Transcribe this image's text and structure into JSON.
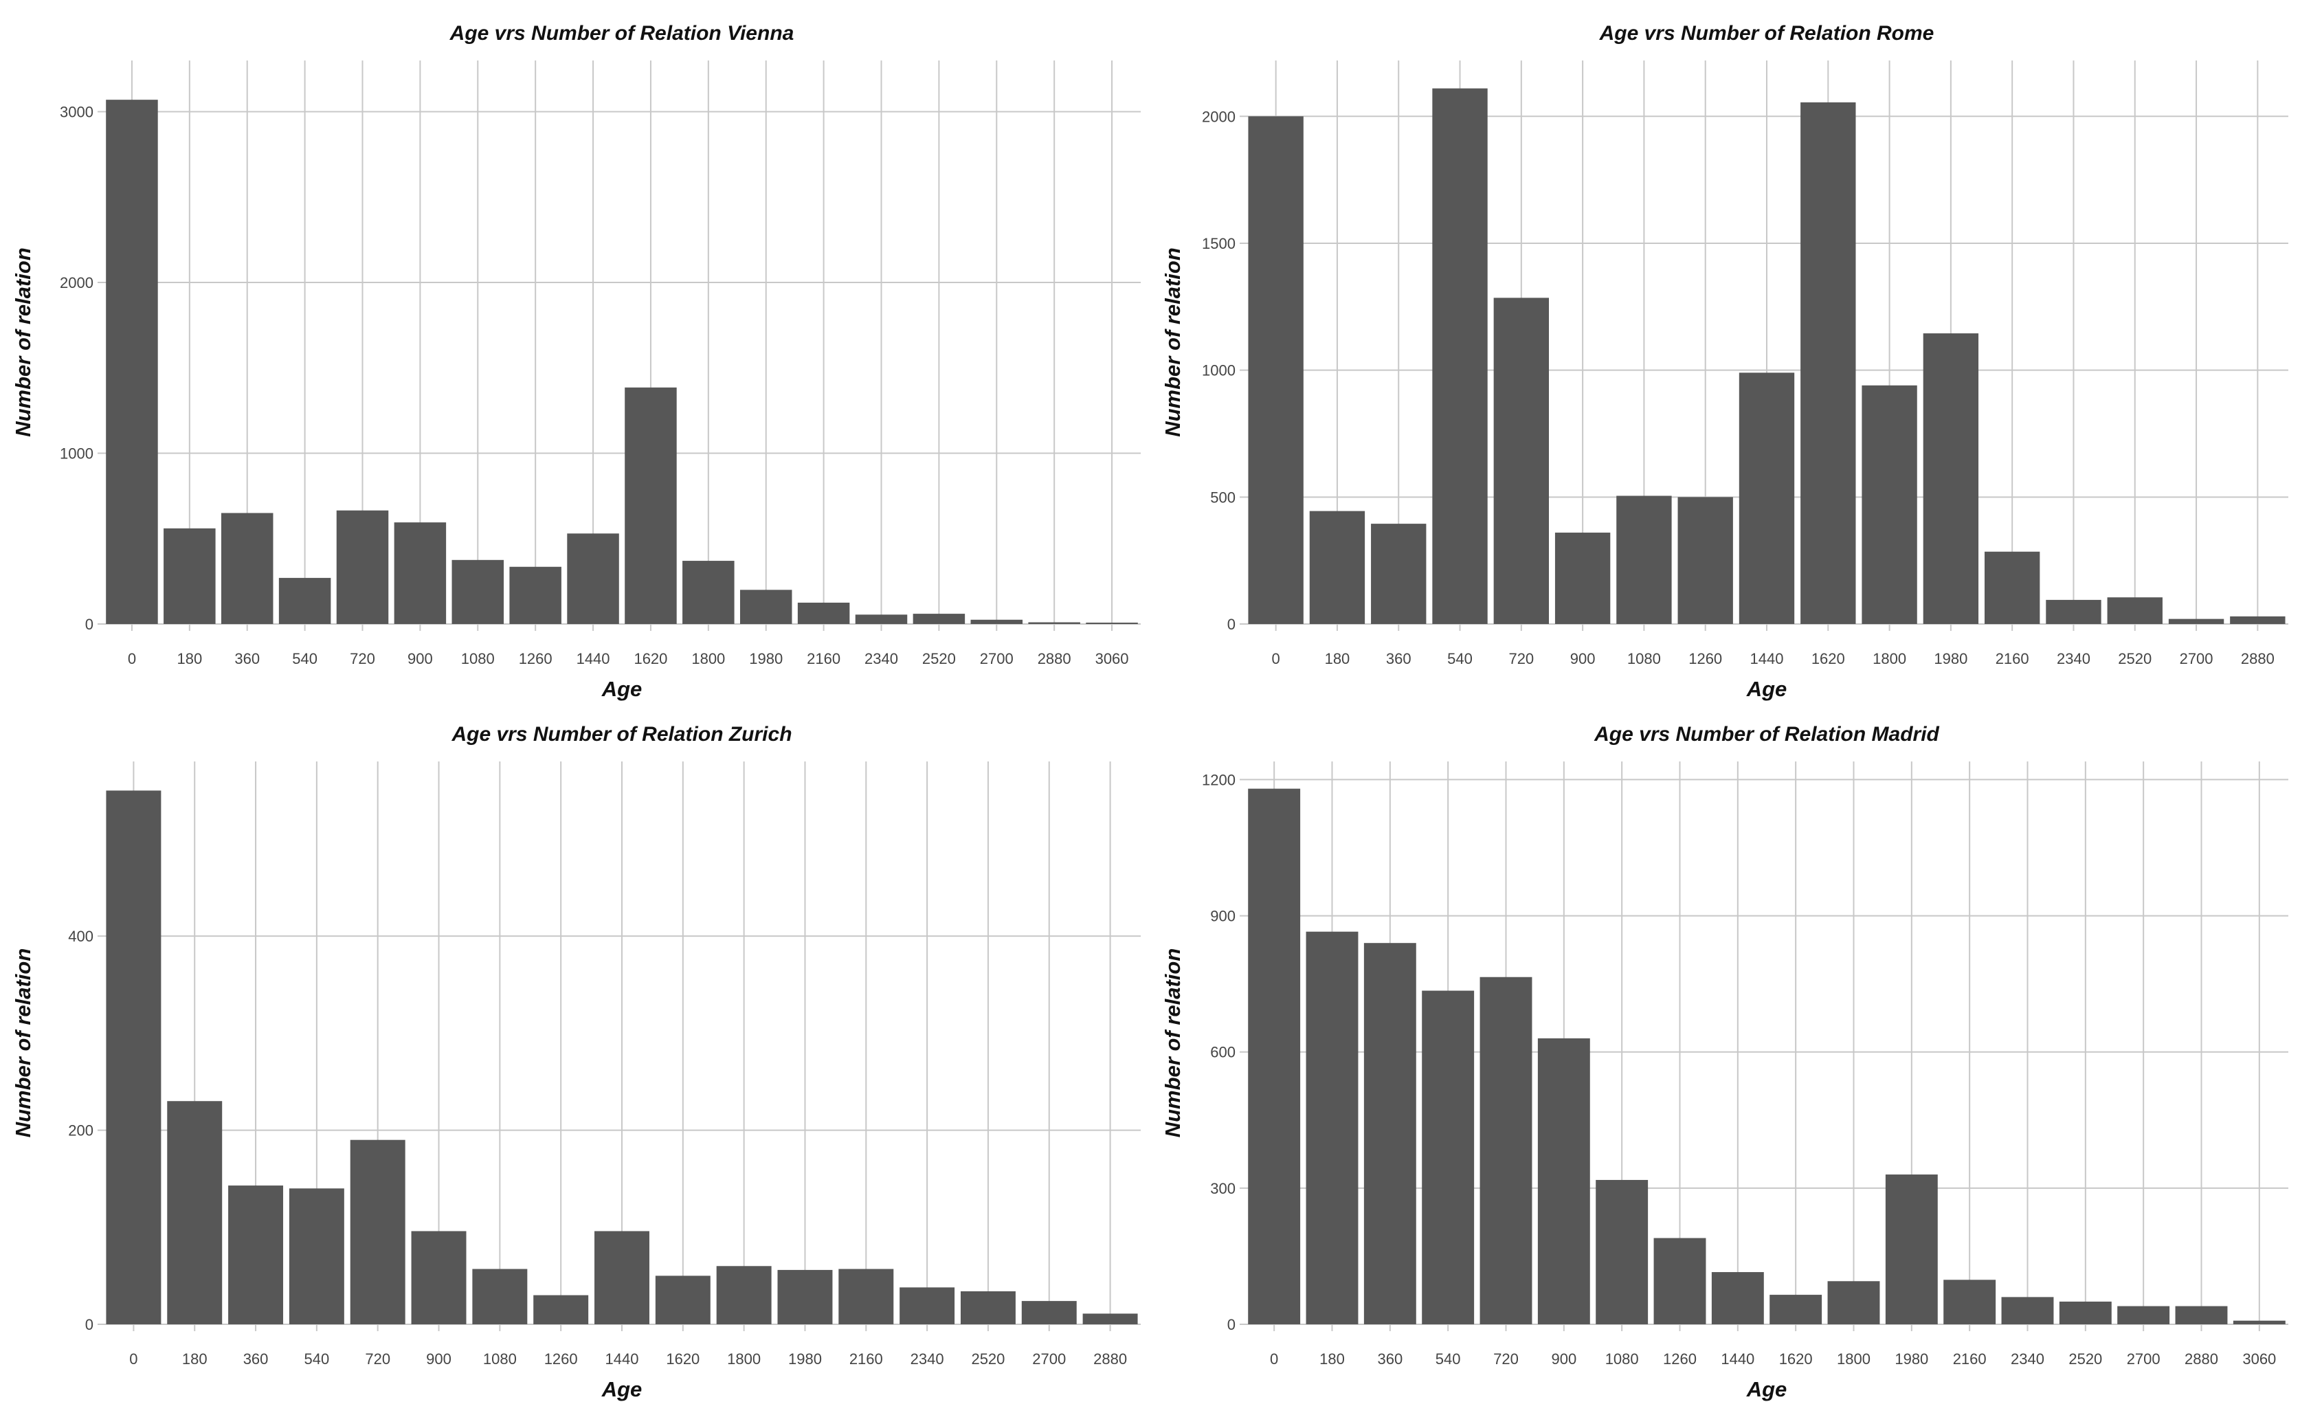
{
  "chart_data": [
    {
      "type": "bar",
      "title": "Age vrs Number of Relation Vienna",
      "xlabel": "Age",
      "ylabel": "Number of relation",
      "categories": [
        "0",
        "180",
        "360",
        "540",
        "720",
        "900",
        "1080",
        "1260",
        "1440",
        "1620",
        "1800",
        "1980",
        "2160",
        "2340",
        "2520",
        "2700",
        "2880",
        "3060"
      ],
      "values": [
        3070,
        560,
        650,
        270,
        665,
        595,
        375,
        335,
        530,
        1385,
        370,
        200,
        125,
        55,
        60,
        25,
        10,
        8
      ],
      "yticks": [
        0,
        1000,
        2000,
        3000
      ],
      "ylim": [
        0,
        3300
      ],
      "grid": true,
      "color": "#575757"
    },
    {
      "type": "bar",
      "title": "Age vrs Number of Relation Rome",
      "xlabel": "Age",
      "ylabel": "Number of relation",
      "categories": [
        "0",
        "180",
        "360",
        "540",
        "720",
        "900",
        "1080",
        "1260",
        "1440",
        "1620",
        "1800",
        "1980",
        "2160",
        "2340",
        "2520",
        "2700",
        "2880"
      ],
      "values": [
        2000,
        445,
        395,
        2110,
        1285,
        360,
        505,
        500,
        990,
        2055,
        940,
        1145,
        285,
        95,
        105,
        20,
        30
      ],
      "yticks": [
        0,
        500,
        1000,
        1500,
        2000
      ],
      "ylim": [
        0,
        2220
      ],
      "grid": true,
      "color": "#575757"
    },
    {
      "type": "bar",
      "title": "Age vrs Number of Relation Zurich",
      "xlabel": "Age",
      "ylabel": "Number of relation",
      "categories": [
        "0",
        "180",
        "360",
        "540",
        "720",
        "900",
        "1080",
        "1260",
        "1440",
        "1620",
        "1800",
        "1980",
        "2160",
        "2340",
        "2520",
        "2700",
        "2880"
      ],
      "values": [
        550,
        230,
        143,
        140,
        190,
        96,
        57,
        30,
        96,
        50,
        60,
        56,
        57,
        38,
        34,
        24,
        11
      ],
      "yticks": [
        0,
        200,
        400
      ],
      "ylim": [
        0,
        580
      ],
      "grid": true,
      "color": "#575757"
    },
    {
      "type": "bar",
      "title": "Age vrs Number of Relation Madrid",
      "xlabel": "Age",
      "ylabel": "Number of relation",
      "categories": [
        "0",
        "180",
        "360",
        "540",
        "720",
        "900",
        "1080",
        "1260",
        "1440",
        "1620",
        "1800",
        "1980",
        "2160",
        "2340",
        "2520",
        "2700",
        "2880",
        "3060"
      ],
      "values": [
        1180,
        865,
        840,
        735,
        765,
        630,
        318,
        190,
        115,
        65,
        95,
        330,
        98,
        60,
        50,
        40,
        40,
        8
      ],
      "yticks": [
        0,
        300,
        600,
        900,
        1200
      ],
      "ylim": [
        0,
        1240
      ],
      "grid": true,
      "color": "#575757"
    }
  ]
}
